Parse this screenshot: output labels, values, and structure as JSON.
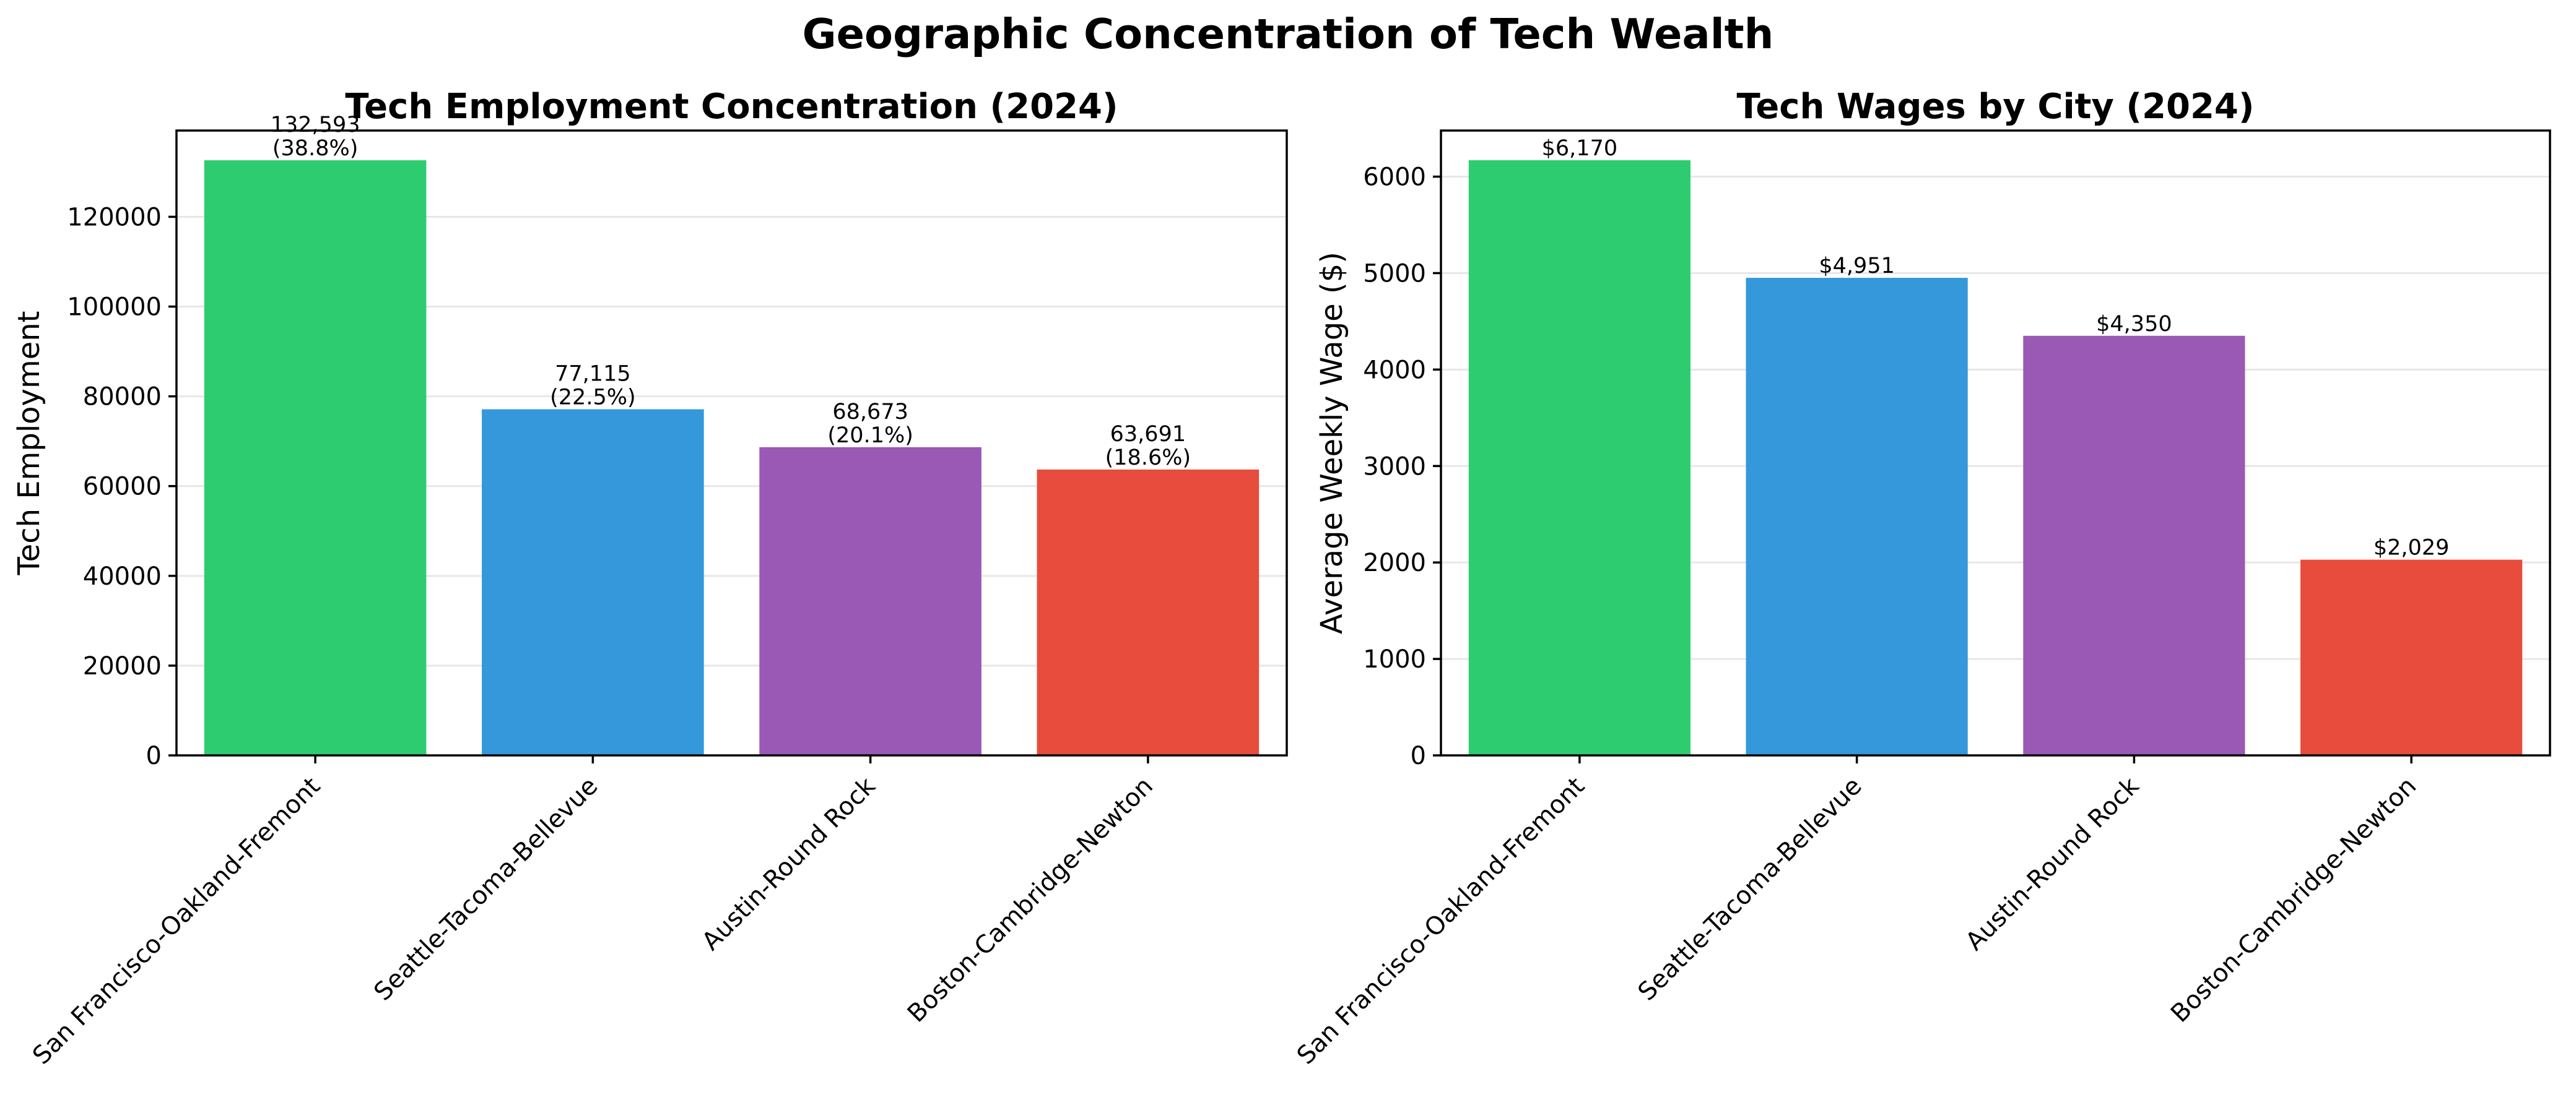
{
  "figure": {
    "title": "Geographic Concentration of Tech Wealth"
  },
  "chart_data": [
    {
      "type": "bar",
      "title": "Tech Employment Concentration (2024)",
      "xlabel": "",
      "ylabel": "Tech Employment",
      "categories": [
        "San Francisco-Oakland-Fremont",
        "Seattle-Tacoma-Bellevue",
        "Austin-Round Rock",
        "Boston-Cambridge-Newton"
      ],
      "values": [
        132593,
        77115,
        68673,
        63691
      ],
      "data_labels": [
        "132,593\n(38.8%)",
        "77,115\n(22.5%)",
        "68,673\n(20.1%)",
        "63,691\n(18.6%)"
      ],
      "colors": [
        "#2ecc71",
        "#3498db",
        "#9b59b6",
        "#e74c3c"
      ],
      "ylim": [
        0,
        139222
      ],
      "yticks": [
        0,
        20000,
        40000,
        60000,
        80000,
        100000,
        120000
      ],
      "ytick_labels": [
        "0",
        "20000",
        "40000",
        "60000",
        "80000",
        "100000",
        "120000"
      ],
      "grid": "y",
      "legend": "none"
    },
    {
      "type": "bar",
      "title": "Tech Wages by City (2024)",
      "xlabel": "",
      "ylabel": "Average Weekly Wage ($)",
      "categories": [
        "San Francisco-Oakland-Fremont",
        "Seattle-Tacoma-Bellevue",
        "Austin-Round Rock",
        "Boston-Cambridge-Newton"
      ],
      "values": [
        6170,
        4951,
        4350,
        2029
      ],
      "data_labels": [
        "$6,170",
        "$4,951",
        "$4,350",
        "$2,029"
      ],
      "colors": [
        "#2ecc71",
        "#3498db",
        "#9b59b6",
        "#e74c3c"
      ],
      "ylim": [
        0,
        6478
      ],
      "yticks": [
        0,
        1000,
        2000,
        3000,
        4000,
        5000,
        6000
      ],
      "ytick_labels": [
        "0",
        "1000",
        "2000",
        "3000",
        "4000",
        "5000",
        "6000"
      ],
      "grid": "y",
      "legend": "none"
    }
  ]
}
